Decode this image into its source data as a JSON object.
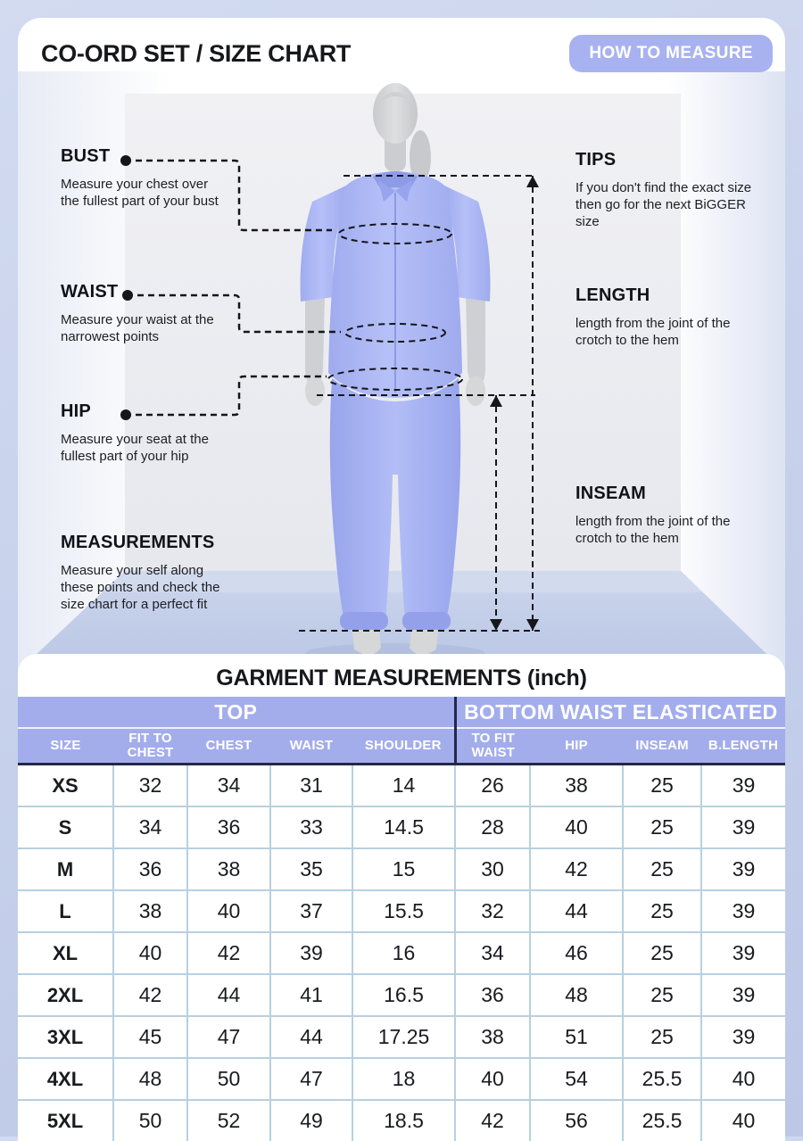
{
  "page": {
    "title": "CO-ORD SET / SIZE CHART",
    "measure_button": "HOW TO MEASURE"
  },
  "annotations": {
    "bust": {
      "label": "BUST",
      "desc": "Measure your chest over the fullest part of your bust"
    },
    "waist": {
      "label": "WAIST",
      "desc": "Measure your waist at the narrowest points"
    },
    "hip": {
      "label": "HIP",
      "desc": "Measure your seat at the fullest part of your hip"
    },
    "measurements": {
      "label": "MEASUREMENTS",
      "desc": "Measure your self along these points and check the size chart for a perfect fit"
    },
    "tips": {
      "label": "TIPS",
      "desc": "If you don't find the exact size then go for the next BiGGER size"
    },
    "length": {
      "label": "LENGTH",
      "desc": "length from the joint of the crotch to the hem"
    },
    "inseam": {
      "label": "INSEAM",
      "desc": "length from the joint of the crotch to the hem"
    }
  },
  "table": {
    "title": "GARMENT MEASUREMENTS (inch)",
    "group_headers": [
      {
        "label": "TOP",
        "colspan": 5
      },
      {
        "label": "BOTTOM WAIST ELASTICATED",
        "colspan": 4
      }
    ],
    "columns": [
      "SIZE",
      "FIT TO CHEST",
      "CHEST",
      "WAIST",
      "SHOULDER",
      "TO FIT WAIST",
      "HIP",
      "INSEAM",
      "B.LENGTH"
    ],
    "rows": [
      {
        "size": "XS",
        "values": [
          "32",
          "34",
          "31",
          "14",
          "26",
          "38",
          "25",
          "39"
        ]
      },
      {
        "size": "S",
        "values": [
          "34",
          "36",
          "33",
          "14.5",
          "28",
          "40",
          "25",
          "39"
        ]
      },
      {
        "size": "M",
        "values": [
          "36",
          "38",
          "35",
          "15",
          "30",
          "42",
          "25",
          "39"
        ]
      },
      {
        "size": "L",
        "values": [
          "38",
          "40",
          "37",
          "15.5",
          "32",
          "44",
          "25",
          "39"
        ]
      },
      {
        "size": "XL",
        "values": [
          "40",
          "42",
          "39",
          "16",
          "34",
          "46",
          "25",
          "39"
        ]
      },
      {
        "size": "2XL",
        "values": [
          "42",
          "44",
          "41",
          "16.5",
          "36",
          "48",
          "25",
          "39"
        ]
      },
      {
        "size": "3XL",
        "values": [
          "45",
          "47",
          "44",
          "17.25",
          "38",
          "51",
          "25",
          "39"
        ]
      },
      {
        "size": "4XL",
        "values": [
          "48",
          "50",
          "47",
          "18",
          "40",
          "54",
          "25.5",
          "40"
        ]
      },
      {
        "size": "5XL",
        "values": [
          "50",
          "52",
          "49",
          "18.5",
          "42",
          "56",
          "25.5",
          "40"
        ]
      }
    ]
  },
  "colors": {
    "accent_purple": "#a8b2f0",
    "table_header_purple": "#a3adec",
    "divider_navy": "#23284a",
    "cell_border_blue": "#b7d0e0",
    "garment_blue": "#a9b5f4",
    "page_background": "#c8d2ec"
  }
}
